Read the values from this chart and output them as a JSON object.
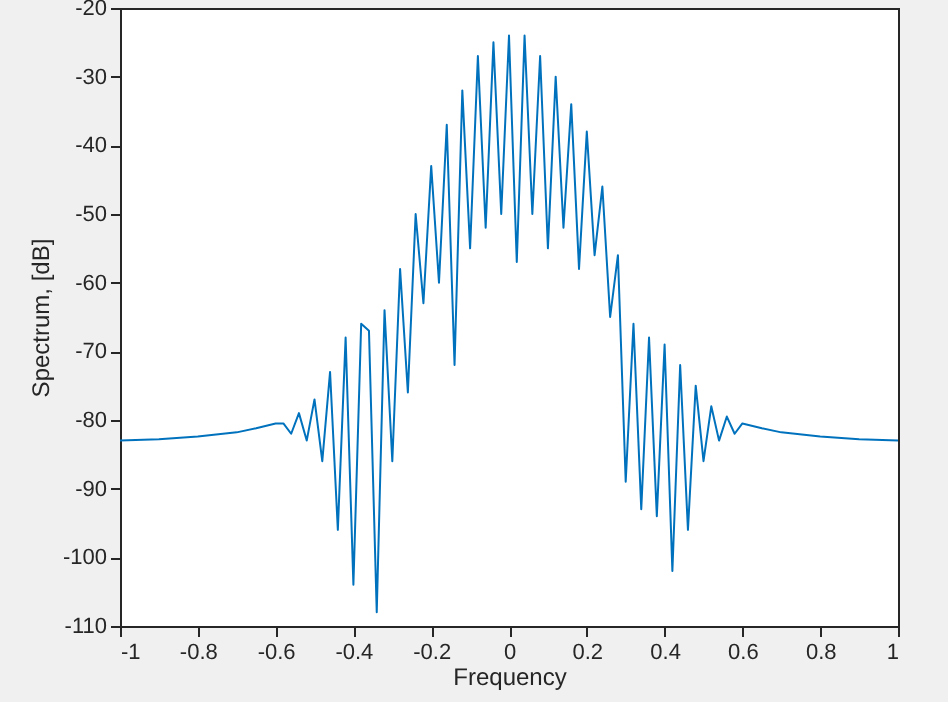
{
  "chart_data": {
    "type": "line",
    "xlabel": "Frequency",
    "ylabel": "Spectrum,  [dB]",
    "x": [
      -1,
      -0.9,
      -0.8,
      -0.7,
      -0.65,
      -0.6,
      -0.58,
      -0.56,
      -0.54,
      -0.52,
      -0.5,
      -0.48,
      -0.46,
      -0.44,
      -0.42,
      -0.4,
      -0.38,
      -0.36,
      -0.34,
      -0.32,
      -0.3,
      -0.28,
      -0.26,
      -0.24,
      -0.22,
      -0.2,
      -0.18,
      -0.16,
      -0.14,
      -0.12,
      -0.1,
      -0.08,
      -0.06,
      -0.04,
      -0.02,
      0,
      0.02,
      0.04,
      0.06,
      0.08,
      0.1,
      0.12,
      0.14,
      0.16,
      0.18,
      0.2,
      0.22,
      0.24,
      0.26,
      0.28,
      0.3,
      0.32,
      0.34,
      0.36,
      0.38,
      0.4,
      0.42,
      0.44,
      0.46,
      0.48,
      0.5,
      0.52,
      0.54,
      0.56,
      0.58,
      0.6,
      0.65,
      0.7,
      0.8,
      0.9,
      1
    ],
    "series": [
      {
        "color": "#0072bd",
        "values": [
          -83,
          -82.8,
          -82.4,
          -81.8,
          -81.2,
          -80.5,
          -80.5,
          -82,
          -79,
          -83,
          -77,
          -86,
          -73,
          -96,
          -68,
          -104,
          -66,
          -67,
          -108,
          -64,
          -86,
          -58,
          -76,
          -50,
          -63,
          -43,
          -60,
          -37,
          -72,
          -32,
          -55,
          -27,
          -52,
          -25,
          -50,
          -24,
          -57,
          -24,
          -50,
          -27,
          -55,
          -30,
          -52,
          -34,
          -58,
          -38,
          -56,
          -46,
          -65,
          -56,
          -89,
          -66,
          -93,
          -68,
          -94,
          -69,
          -102,
          -72,
          -96,
          -75,
          -86,
          -78,
          -83,
          -79.5,
          -82,
          -80.5,
          -81.2,
          -81.8,
          -82.4,
          -82.8,
          -83
        ]
      }
    ],
    "xlim": [
      -1,
      1
    ],
    "xticks": [
      -1,
      -0.8,
      -0.6,
      -0.4,
      -0.2,
      0,
      0.2,
      0.4,
      0.6,
      0.8,
      1
    ],
    "ylim": [
      -110,
      -20
    ],
    "yticks": [
      -110,
      -100,
      -90,
      -80,
      -70,
      -60,
      -50,
      -40,
      -30,
      -20
    ],
    "grid": false,
    "marker": "none",
    "line_style": "solid"
  }
}
